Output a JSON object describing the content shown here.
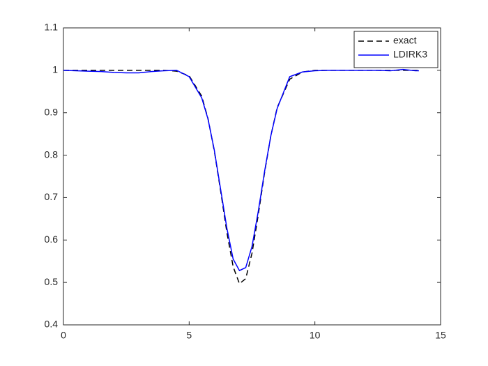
{
  "chart_data": {
    "type": "line",
    "x": [
      0,
      0.5,
      1,
      1.5,
      2,
      2.5,
      3,
      3.5,
      4,
      4.5,
      5,
      5.5,
      5.75,
      6,
      6.25,
      6.5,
      6.75,
      7,
      7.25,
      7.5,
      7.75,
      8,
      8.25,
      8.5,
      9,
      9.5,
      10,
      10.5,
      11,
      11.5,
      12,
      12.5,
      13,
      13.5,
      14,
      14.14
    ],
    "series": [
      {
        "name": "exact",
        "color": "#000000",
        "line_style": "dashed",
        "values": [
          1,
          1,
          1,
          1,
          1,
          1,
          1,
          1,
          1,
          0.998,
          0.987,
          0.939,
          0.886,
          0.81,
          0.716,
          0.618,
          0.537,
          0.497,
          0.509,
          0.569,
          0.66,
          0.759,
          0.846,
          0.912,
          0.979,
          0.996,
          1,
          1,
          1,
          1,
          1,
          1,
          1,
          1,
          1,
          1
        ]
      },
      {
        "name": "LDIRK3",
        "color": "#0000ff",
        "line_style": "solid",
        "values": [
          1,
          0.999,
          0.998,
          0.997,
          0.995,
          0.994,
          0.994,
          0.997,
          0.999,
          1,
          0.985,
          0.935,
          0.885,
          0.812,
          0.72,
          0.628,
          0.555,
          0.528,
          0.535,
          0.585,
          0.668,
          0.762,
          0.846,
          0.91,
          0.985,
          0.996,
          0.999,
          1,
          1,
          1,
          1,
          1,
          0.999,
          1.002,
          0.999,
          0.999
        ]
      }
    ],
    "xlim": [
      0,
      15
    ],
    "xticks": [
      0,
      5,
      10,
      15
    ],
    "ylim": [
      0.4,
      1.1
    ],
    "yticks": [
      0.4,
      0.5,
      0.6,
      0.7,
      0.8,
      0.9,
      1,
      1.1
    ],
    "grid": false,
    "legend": "northeast"
  }
}
